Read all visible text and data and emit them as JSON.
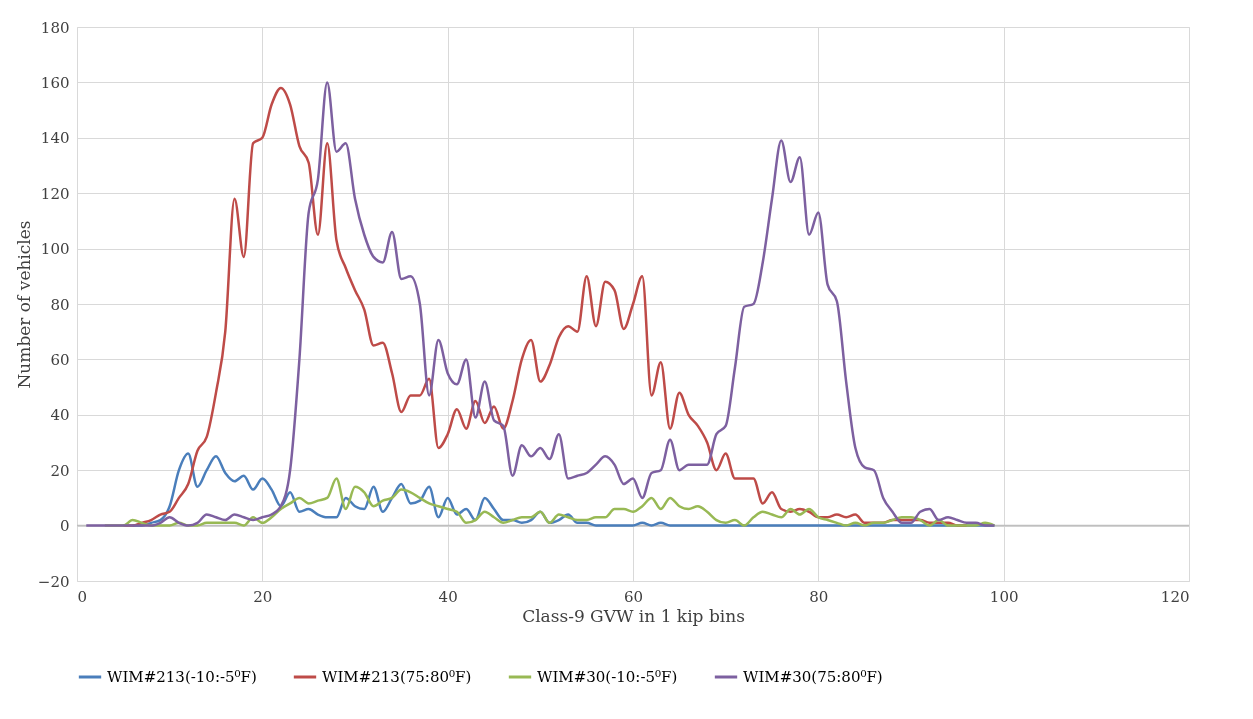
{
  "chart_data": {
    "type": "line",
    "xlabel": "Class-9 GVW in 1 kip bins",
    "ylabel": "Number of vehicles",
    "x": [
      1,
      2,
      3,
      4,
      5,
      6,
      7,
      8,
      9,
      10,
      11,
      12,
      13,
      14,
      15,
      16,
      17,
      18,
      19,
      20,
      21,
      22,
      23,
      24,
      25,
      26,
      27,
      28,
      29,
      30,
      31,
      32,
      33,
      34,
      35,
      36,
      37,
      38,
      39,
      40,
      41,
      42,
      43,
      44,
      45,
      46,
      47,
      48,
      49,
      50,
      51,
      52,
      53,
      54,
      55,
      56,
      57,
      58,
      59,
      60,
      61,
      62,
      63,
      64,
      65,
      66,
      67,
      68,
      69,
      70,
      71,
      72,
      73,
      74,
      75,
      76,
      77,
      78,
      79,
      80,
      81,
      82,
      83,
      84,
      85,
      86,
      87,
      88,
      89,
      90,
      91,
      92,
      93,
      94,
      95,
      96,
      97,
      98,
      99
    ],
    "xlim": [
      0,
      120
    ],
    "xticks": [
      0,
      20,
      40,
      60,
      80,
      100,
      120
    ],
    "ylim": [
      -20,
      180
    ],
    "yticks": [
      -20,
      0,
      20,
      40,
      60,
      80,
      100,
      120,
      140,
      160,
      180
    ],
    "grid": true,
    "legend": "bottom",
    "marker": "none",
    "line_style": "solid",
    "series": [
      {
        "name": "WIM#213(-10:-5⁰F)",
        "color": "#4a7ebb",
        "values": [
          null,
          null,
          null,
          null,
          null,
          0,
          0,
          1,
          2,
          7,
          20,
          26,
          14,
          20,
          25,
          19,
          16,
          18,
          13,
          17,
          13,
          7,
          12,
          5,
          6,
          4,
          3,
          3,
          10,
          7,
          6,
          14,
          5,
          10,
          15,
          8,
          9,
          14,
          3,
          10,
          4,
          6,
          2,
          10,
          6,
          2,
          2,
          1,
          2,
          5,
          1,
          2,
          4,
          1,
          1,
          0,
          0,
          0,
          0,
          0,
          1,
          0,
          1,
          0,
          0,
          0,
          0,
          0,
          0,
          0,
          0,
          0,
          0,
          0,
          0,
          0,
          0,
          0,
          0,
          0,
          0,
          0,
          0,
          0,
          0,
          0,
          0,
          0,
          0,
          0,
          0,
          0,
          0,
          0,
          0,
          0,
          0,
          0,
          0
        ]
      },
      {
        "name": "WIM#213(75:80⁰F)",
        "color": "#be4b48",
        "values": [
          null,
          null,
          null,
          null,
          0,
          0,
          1,
          2,
          4,
          5,
          10,
          15,
          27,
          32,
          48,
          70,
          118,
          97,
          138,
          140,
          152,
          158,
          152,
          137,
          131,
          105,
          138,
          103,
          93,
          85,
          78,
          65,
          66,
          55,
          41,
          47,
          47,
          53,
          28,
          33,
          42,
          35,
          45,
          37,
          43,
          35,
          45,
          60,
          67,
          52,
          58,
          68,
          72,
          70,
          90,
          72,
          88,
          85,
          71,
          80,
          90,
          47,
          59,
          35,
          48,
          40,
          36,
          30,
          20,
          26,
          17,
          17,
          17,
          8,
          12,
          6,
          5,
          6,
          5,
          3,
          3,
          4,
          3,
          4,
          1,
          1,
          1,
          2,
          2,
          2,
          2,
          1,
          1,
          1,
          0,
          0,
          null,
          null,
          null
        ]
      },
      {
        "name": "WIM#30(-10:-5⁰F)",
        "color": "#98b954",
        "values": [
          null,
          null,
          0,
          0,
          0,
          2,
          1,
          0,
          0,
          0,
          1,
          0,
          0,
          1,
          1,
          1,
          1,
          0,
          3,
          1,
          3,
          6,
          8,
          10,
          8,
          9,
          10,
          17,
          6,
          14,
          12,
          7,
          9,
          10,
          13,
          12,
          10,
          8,
          7,
          6,
          5,
          1,
          2,
          5,
          3,
          1,
          2,
          3,
          3,
          5,
          1,
          4,
          3,
          2,
          2,
          3,
          3,
          6,
          6,
          5,
          7,
          10,
          6,
          10,
          7,
          6,
          7,
          5,
          2,
          1,
          2,
          0,
          3,
          5,
          4,
          3,
          6,
          4,
          6,
          3,
          2,
          1,
          0,
          1,
          0,
          1,
          1,
          2,
          3,
          3,
          2,
          0,
          2,
          0,
          0,
          0,
          0,
          1,
          0
        ]
      },
      {
        "name": "WIM#30(75:80⁰F)",
        "color": "#7d60a0",
        "values": [
          0,
          0,
          0,
          0,
          0,
          0,
          0,
          0,
          1,
          3,
          1,
          0,
          1,
          4,
          3,
          2,
          4,
          3,
          2,
          3,
          4,
          7,
          20,
          60,
          113,
          125,
          160,
          135,
          138,
          118,
          105,
          97,
          95,
          106,
          89,
          90,
          80,
          47,
          67,
          55,
          51,
          60,
          39,
          52,
          38,
          36,
          18,
          29,
          25,
          28,
          24,
          33,
          17,
          18,
          19,
          22,
          25,
          22,
          15,
          17,
          10,
          19,
          20,
          31,
          20,
          22,
          22,
          22,
          33,
          36,
          57,
          79,
          80,
          95,
          118,
          139,
          124,
          133,
          105,
          113,
          87,
          81,
          52,
          28,
          21,
          20,
          10,
          5,
          1,
          1,
          5,
          6,
          2,
          3,
          2,
          1,
          1,
          0,
          0
        ]
      }
    ]
  }
}
